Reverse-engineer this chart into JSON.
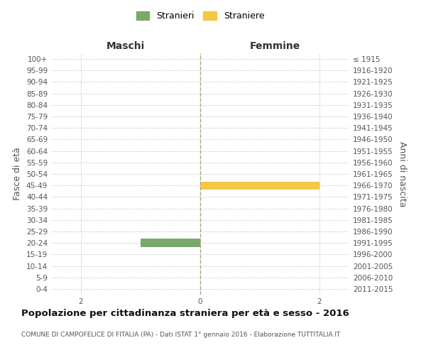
{
  "age_groups": [
    "100+",
    "95-99",
    "90-94",
    "85-89",
    "80-84",
    "75-79",
    "70-74",
    "65-69",
    "60-64",
    "55-59",
    "50-54",
    "45-49",
    "40-44",
    "35-39",
    "30-34",
    "25-29",
    "20-24",
    "15-19",
    "10-14",
    "5-9",
    "0-4"
  ],
  "birth_years": [
    "≤ 1915",
    "1916-1920",
    "1921-1925",
    "1926-1930",
    "1931-1935",
    "1936-1940",
    "1941-1945",
    "1946-1950",
    "1951-1955",
    "1956-1960",
    "1961-1965",
    "1966-1970",
    "1971-1975",
    "1976-1980",
    "1981-1985",
    "1986-1990",
    "1991-1995",
    "1996-2000",
    "2001-2005",
    "2006-2010",
    "2011-2015"
  ],
  "males": [
    0,
    0,
    0,
    0,
    0,
    0,
    0,
    0,
    0,
    0,
    0,
    0,
    0,
    0,
    0,
    0,
    1,
    0,
    0,
    0,
    0
  ],
  "females": [
    0,
    0,
    0,
    0,
    0,
    0,
    0,
    0,
    0,
    0,
    0,
    2,
    0,
    0,
    0,
    0,
    0,
    0,
    0,
    0,
    0
  ],
  "male_color": "#7aaa6a",
  "female_color": "#f5c842",
  "xlim": 2.5,
  "title": "Popolazione per cittadinanza straniera per età e sesso - 2016",
  "subtitle": "COMUNE DI CAMPOFELICE DI FITALIA (PA) - Dati ISTAT 1° gennaio 2016 - Elaborazione TUTTITALIA.IT",
  "ylabel_left": "Fasce di età",
  "ylabel_right": "Anni di nascita",
  "xlabel_left": "Maschi",
  "xlabel_right": "Femmine",
  "legend_stranieri": "Stranieri",
  "legend_straniere": "Straniere",
  "bg_color": "#ffffff",
  "grid_color": "#cccccc",
  "tick_fontsize": 7.5,
  "label_fontsize": 9
}
